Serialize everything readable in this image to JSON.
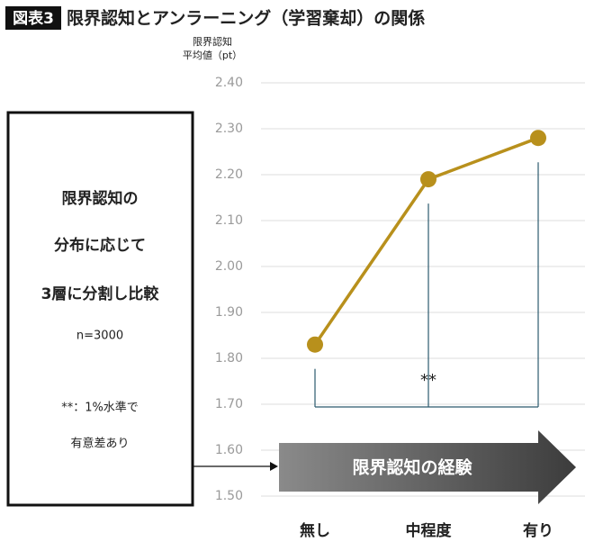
{
  "chart_data": {
    "type": "line",
    "label": "図表3",
    "title": "限界認知とアンラーニング（学習棄却）の関係",
    "ylabel": [
      "限界認知",
      "平均値（pt）"
    ],
    "categories": [
      "無し",
      "中程度",
      "有り"
    ],
    "values": [
      1.83,
      2.19,
      2.28
    ],
    "color": "#b8901c",
    "ylim": [
      1.5,
      2.4
    ],
    "yticks": [
      {
        "value": 1.5,
        "label": "1.50"
      },
      {
        "value": 1.6,
        "label": "1.60"
      },
      {
        "value": 1.7,
        "label": "1.70"
      },
      {
        "value": 1.8,
        "label": "1.80"
      },
      {
        "value": 1.9,
        "label": "1.90"
      },
      {
        "value": 2.0,
        "label": "2.00"
      },
      {
        "value": 2.1,
        "label": "2.10"
      },
      {
        "value": 2.2,
        "label": "2.20"
      },
      {
        "value": 2.3,
        "label": "2.30"
      },
      {
        "value": 2.4,
        "label": "2.40"
      }
    ],
    "grid": true,
    "significance": "**",
    "box_text": [
      "限界認知の",
      "分布に応じて",
      "3層に分割し比較"
    ],
    "sample": "n=3000",
    "note": [
      "**：1%水準で",
      "有意差あり"
    ],
    "arrow_label": "限界認知の経験"
  }
}
